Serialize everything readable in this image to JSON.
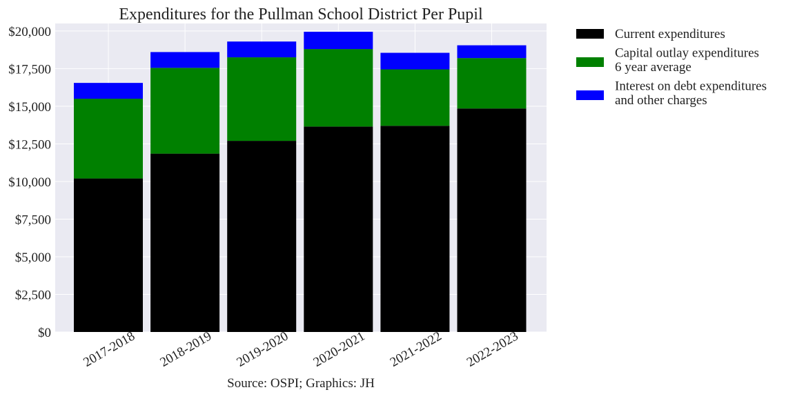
{
  "chart_data": {
    "type": "bar",
    "stacked": true,
    "title": "Expenditures for the Pullman School District Per Pupil",
    "caption": "Source: OSPI; Graphics: JH",
    "xlabel": "",
    "ylabel": "",
    "categories": [
      "2017-2018",
      "2018-2019",
      "2019-2020",
      "2020-2021",
      "2021-2022",
      "2022-2023"
    ],
    "ylim": [
      0,
      20500
    ],
    "yticks": [
      0,
      2500,
      5000,
      7500,
      10000,
      12500,
      15000,
      17500,
      20000
    ],
    "ytick_labels": [
      "$0",
      "$2,500",
      "$5,000",
      "$7,500",
      "$10,000",
      "$12,500",
      "$15,000",
      "$17,500",
      "$20,000"
    ],
    "grid": true,
    "legend_position": "outside-right-top",
    "series": [
      {
        "name": "Current expenditures",
        "color": "#000000",
        "values": [
          10200,
          11850,
          12700,
          13650,
          13700,
          14850
        ]
      },
      {
        "name": "Capital outlay expenditures\n6 year average",
        "color": "#008000",
        "values": [
          5300,
          5700,
          5550,
          5150,
          3750,
          3350
        ]
      },
      {
        "name": "Interest on debt expenditures\nand other charges",
        "color": "#0000ff",
        "values": [
          1050,
          1050,
          1050,
          1150,
          1100,
          850
        ]
      }
    ]
  }
}
